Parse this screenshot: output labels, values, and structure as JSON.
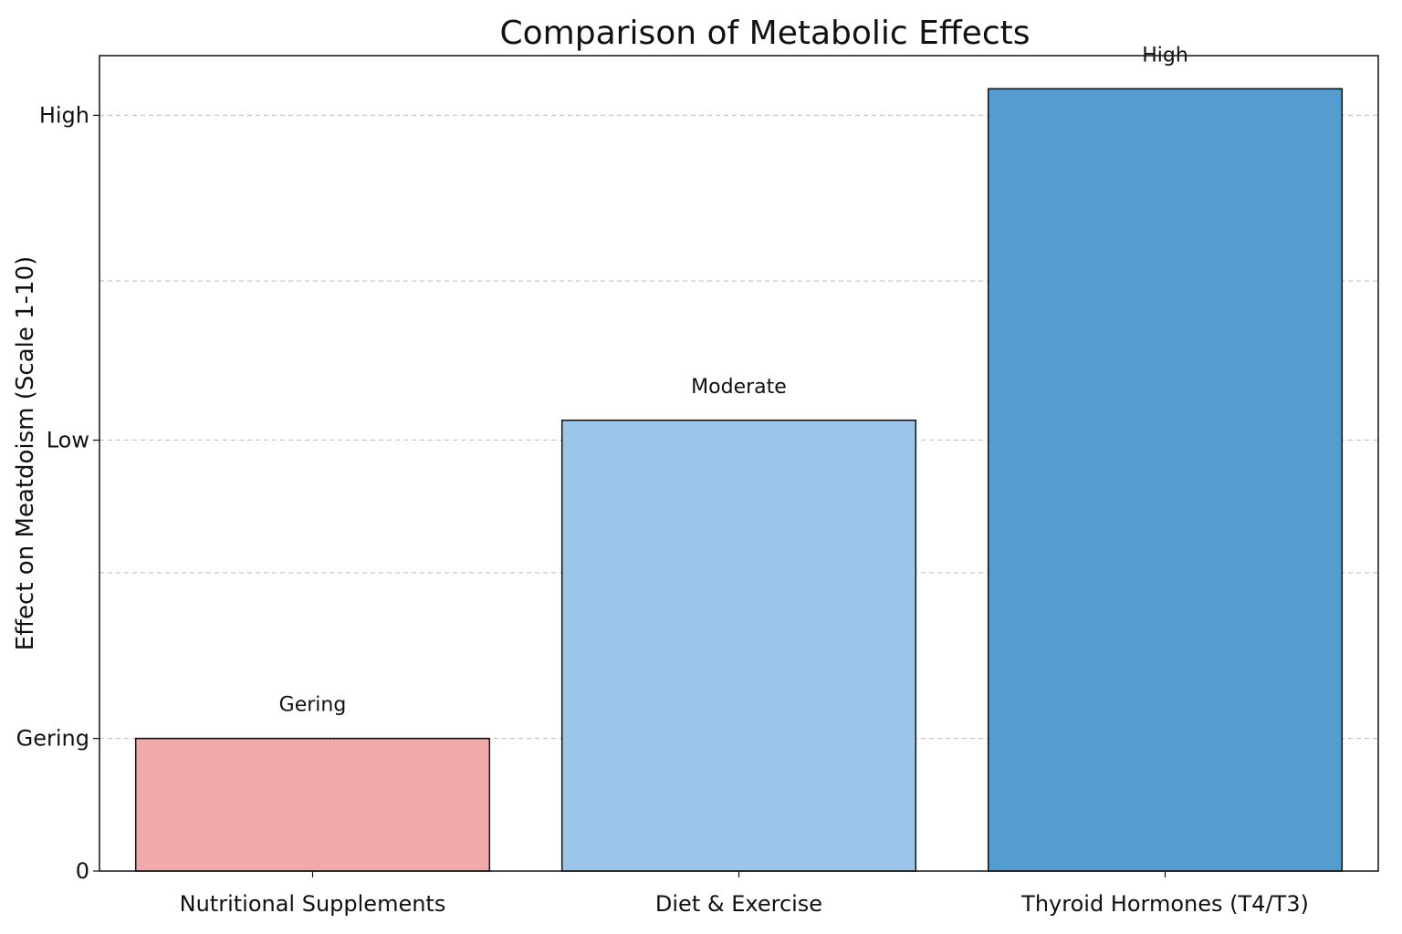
{
  "chart_data": {
    "type": "bar",
    "title": "Comparison of Metabolic Effects",
    "xlabel": "",
    "ylabel": "Effect on Meatdoism (Scale 1-10)",
    "categories": [
      "Nutritional Supplements",
      "Diet & Exercise",
      "Thyroid Hormones (T4/T3)"
    ],
    "values": [
      2.0,
      6.8,
      11.8
    ],
    "data_labels": [
      "Gering",
      "Moderate",
      "High"
    ],
    "colors": [
      "#f2a9a9",
      "#9cc6e9",
      "#559dd0"
    ],
    "ylim": [
      0,
      12.3
    ],
    "yticks": [
      {
        "value": 0,
        "label": "0"
      },
      {
        "value": 2,
        "label": "Gering"
      },
      {
        "value": 6.5,
        "label": "Low"
      },
      {
        "value": 11.4,
        "label": "High"
      }
    ],
    "gridlines": [
      2,
      4.5,
      6.5,
      8.9,
      11.4
    ],
    "grid": true,
    "legend": "none"
  }
}
